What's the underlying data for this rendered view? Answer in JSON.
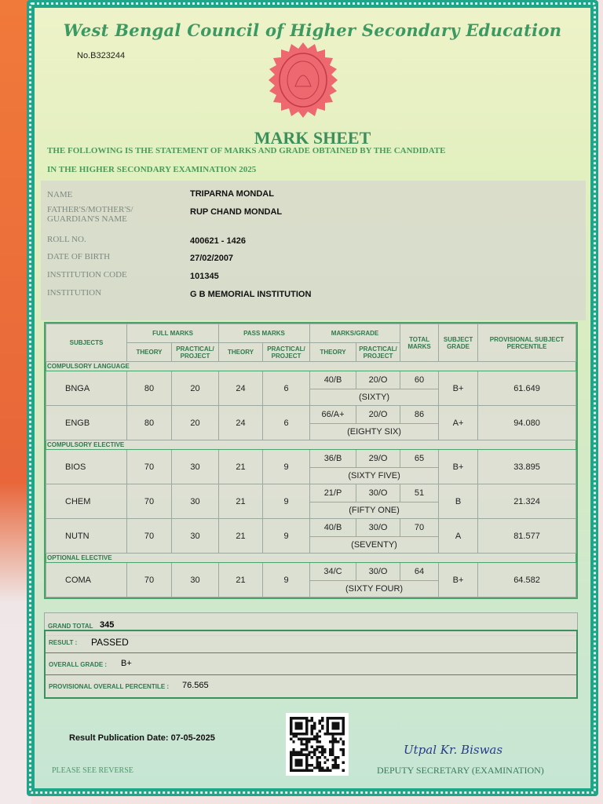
{
  "header": {
    "council": "West Bengal Council of Higher Secondary Education",
    "serial_no": "No.B323244",
    "title": "MARK SHEET",
    "statement_line1": "THE FOLLOWING IS THE STATEMENT OF MARKS AND GRADE OBTAINED BY THE CANDIDATE",
    "statement_line2": "IN THE HIGHER SECONDARY EXAMINATION 2025"
  },
  "candidate": {
    "name_label": "NAME",
    "name": "TRIPARNA MONDAL",
    "guardian_label_1": "FATHER'S/MOTHER'S/",
    "guardian_label_2": "GUARDIAN'S NAME",
    "guardian": "RUP CHAND MONDAL",
    "roll_label": "ROLL NO.",
    "roll": "400621 - 1426",
    "dob_label": "DATE OF BIRTH",
    "dob": "27/02/2007",
    "inst_code_label": "INSTITUTION CODE",
    "inst_code": "101345",
    "inst_label": "INSTITUTION",
    "institution": "G B MEMORIAL INSTITUTION"
  },
  "table": {
    "headers": {
      "subjects": "SUBJECTS",
      "full_marks": "FULL MARKS",
      "pass_marks": "PASS MARKS",
      "marks_grade": "MARKS/GRADE",
      "theory": "THEORY",
      "practical": "PRACTICAL/ PROJECT",
      "total": "TOTAL MARKS",
      "grade": "SUBJECT GRADE",
      "percentile": "PROVISIONAL SUBJECT PERCENTILE"
    },
    "sections": [
      {
        "label": "COMPULSORY LANGUAGE",
        "rows": [
          {
            "subject": "BNGA",
            "fm_th": "80",
            "fm_pr": "20",
            "pm_th": "24",
            "pm_pr": "6",
            "mg_th": "40/B",
            "mg_pr": "20/O",
            "total": "60",
            "words": "(SIXTY)",
            "grade": "B+",
            "percentile": "61.649"
          },
          {
            "subject": "ENGB",
            "fm_th": "80",
            "fm_pr": "20",
            "pm_th": "24",
            "pm_pr": "6",
            "mg_th": "66/A+",
            "mg_pr": "20/O",
            "total": "86",
            "words": "(EIGHTY SIX)",
            "grade": "A+",
            "percentile": "94.080"
          }
        ]
      },
      {
        "label": "COMPULSORY ELECTIVE",
        "rows": [
          {
            "subject": "BIOS",
            "fm_th": "70",
            "fm_pr": "30",
            "pm_th": "21",
            "pm_pr": "9",
            "mg_th": "36/B",
            "mg_pr": "29/O",
            "total": "65",
            "words": "(SIXTY FIVE)",
            "grade": "B+",
            "percentile": "33.895"
          },
          {
            "subject": "CHEM",
            "fm_th": "70",
            "fm_pr": "30",
            "pm_th": "21",
            "pm_pr": "9",
            "mg_th": "21/P",
            "mg_pr": "30/O",
            "total": "51",
            "words": "(FIFTY ONE)",
            "grade": "B",
            "percentile": "21.324"
          },
          {
            "subject": "NUTN",
            "fm_th": "70",
            "fm_pr": "30",
            "pm_th": "21",
            "pm_pr": "9",
            "mg_th": "40/B",
            "mg_pr": "30/O",
            "total": "70",
            "words": "(SEVENTY)",
            "grade": "A",
            "percentile": "81.577"
          }
        ]
      },
      {
        "label": "OPTIONAL ELECTIVE",
        "rows": [
          {
            "subject": "COMA",
            "fm_th": "70",
            "fm_pr": "30",
            "pm_th": "21",
            "pm_pr": "9",
            "mg_th": "34/C",
            "mg_pr": "30/O",
            "total": "64",
            "words": "(SIXTY FOUR)",
            "grade": "B+",
            "percentile": "64.582"
          }
        ]
      }
    ]
  },
  "summary": {
    "grand_total_label": "GRAND TOTAL",
    "grand_total": "345",
    "result_label": "RESULT :",
    "result": "PASSED",
    "overall_grade_label": "OVERALL GRADE :",
    "overall_grade": "B+",
    "percentile_label": "PROVISIONAL OVERALL PERCENTILE :",
    "overall_percentile": "76.565"
  },
  "footer": {
    "publication": "Result Publication Date: 07-05-2025",
    "see_reverse": "PLEASE SEE REVERSE",
    "signature": "Utpal Kr. Biswas",
    "signatory": "DEPUTY SECRETARY (EXAMINATION)"
  },
  "colors": {
    "border": "#1fa58a",
    "text_green": "#3a9a62",
    "seal": "#e8505a"
  }
}
